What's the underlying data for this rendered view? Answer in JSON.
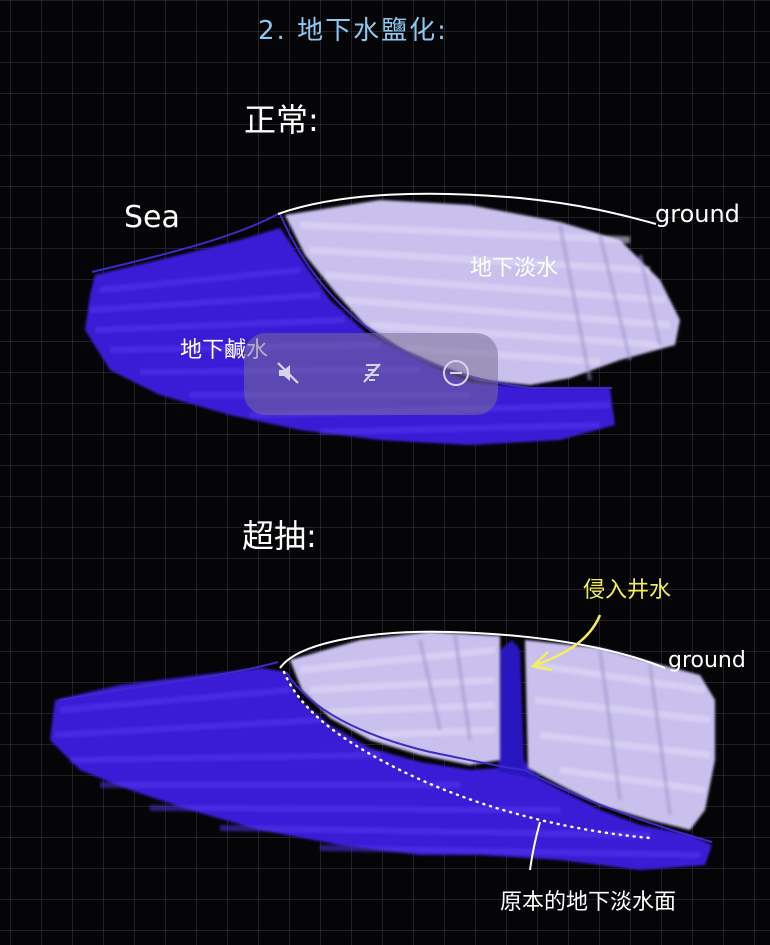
{
  "title": "2. 地下水鹽化:",
  "normal": {
    "heading": "正常:",
    "sea_label": "Sea",
    "ground_label": "ground",
    "freshwater_label": "地下淡水",
    "saltwater_label": "地下鹹水"
  },
  "overpump": {
    "heading": "超抽:",
    "ground_label": "ground",
    "intrusion_label": "侵入井水",
    "original_level_label": "原本的地下淡水面"
  },
  "colors": {
    "background": "#050508",
    "grid": "#3a3a44",
    "saltwater": "#3a1fd6",
    "freshwater": "#c9c0ee",
    "outline": "#ffffff",
    "interface_line": "#3a2cc8",
    "title": "#8ec8f0",
    "annotation": "#f3ef5a"
  },
  "media_overlay": {
    "buttons": [
      "mute-icon",
      "no-subtitles-icon",
      "minimize-icon"
    ]
  }
}
